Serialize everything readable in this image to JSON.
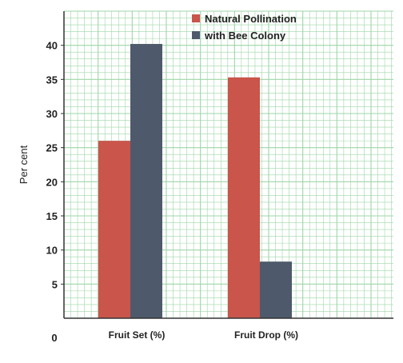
{
  "chart_data": {
    "type": "bar",
    "title": "",
    "xlabel": "",
    "ylabel": "Per cent",
    "origin_label": "0",
    "ylim": [
      0,
      45
    ],
    "yticks": [
      5,
      10,
      15,
      20,
      25,
      30,
      35,
      40
    ],
    "grid": true,
    "legend_position": "top-right",
    "categories": [
      "Fruit Set (%)",
      "Fruit Drop (%)"
    ],
    "series": [
      {
        "name": "Natural Pollination",
        "color": "#c9554b",
        "values": [
          26,
          35.3
        ]
      },
      {
        "name": "with Bee Colony",
        "color": "#4e5a6b",
        "values": [
          40.2,
          8.3
        ]
      }
    ],
    "grid_color": "#9ed6a8"
  }
}
